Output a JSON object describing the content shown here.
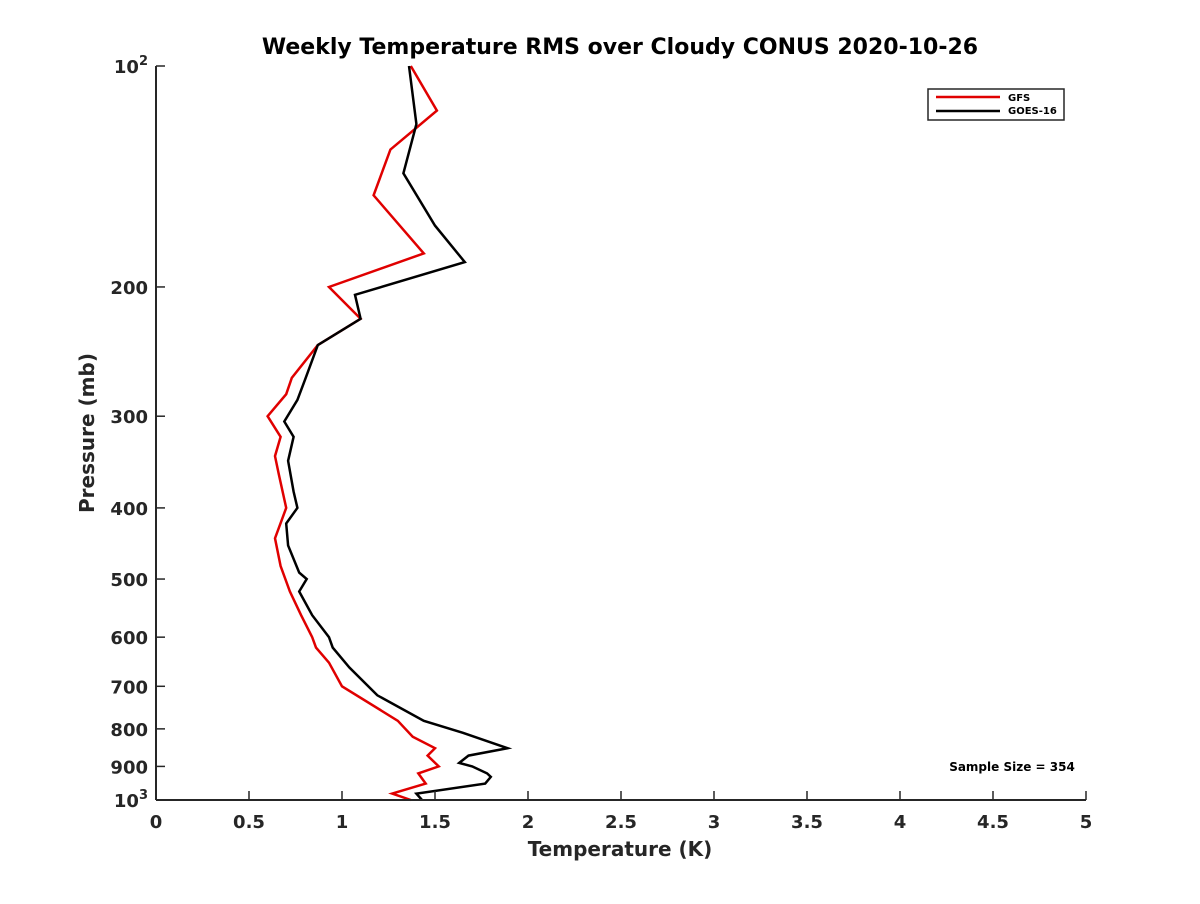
{
  "chart_data": {
    "type": "line",
    "title": "Weekly Temperature RMS over Cloudy CONUS 2020-10-26",
    "xlabel": "Temperature (K)",
    "ylabel": "Pressure (mb)",
    "xlim": [
      0,
      5
    ],
    "ylim": [
      100,
      1000
    ],
    "y_scale": "log",
    "y_reversed": true,
    "x_ticks": [
      0,
      0.5,
      1,
      1.5,
      2,
      2.5,
      3,
      3.5,
      4,
      4.5,
      5
    ],
    "x_tick_labels": [
      "0",
      "0.5",
      "1",
      "1.5",
      "2",
      "2.5",
      "3",
      "3.5",
      "4",
      "4.5",
      "5"
    ],
    "y_ticks": [
      100,
      200,
      300,
      400,
      500,
      600,
      700,
      800,
      900,
      1000
    ],
    "y_tick_labels": [
      {
        "base": "10",
        "exp": "2"
      },
      {
        "base": "200"
      },
      {
        "base": "300"
      },
      {
        "base": "400"
      },
      {
        "base": "500"
      },
      {
        "base": "600"
      },
      {
        "base": "700"
      },
      {
        "base": "800"
      },
      {
        "base": "900"
      },
      {
        "base": "10",
        "exp": "3"
      }
    ],
    "grid": false,
    "legend_position": "top-right",
    "annotation": "Sample Size = 354",
    "series": [
      {
        "name": "GFS",
        "color": "#e00000",
        "points": [
          [
            1.37,
            100
          ],
          [
            1.51,
            115
          ],
          [
            1.26,
            130
          ],
          [
            1.17,
            150
          ],
          [
            1.44,
            180
          ],
          [
            0.93,
            200
          ],
          [
            1.1,
            221
          ],
          [
            0.87,
            240
          ],
          [
            0.73,
            266
          ],
          [
            0.7,
            280
          ],
          [
            0.6,
            300
          ],
          [
            0.67,
            320
          ],
          [
            0.64,
            340
          ],
          [
            0.66,
            360
          ],
          [
            0.7,
            400
          ],
          [
            0.64,
            440
          ],
          [
            0.67,
            480
          ],
          [
            0.72,
            520
          ],
          [
            0.78,
            560
          ],
          [
            0.84,
            600
          ],
          [
            0.86,
            620
          ],
          [
            0.93,
            650
          ],
          [
            1.0,
            700
          ],
          [
            1.3,
            780
          ],
          [
            1.38,
            820
          ],
          [
            1.5,
            850
          ],
          [
            1.46,
            870
          ],
          [
            1.52,
            900
          ],
          [
            1.41,
            920
          ],
          [
            1.45,
            950
          ],
          [
            1.27,
            980
          ],
          [
            1.37,
            1000
          ]
        ]
      },
      {
        "name": "GOES-16",
        "color": "#000000",
        "points": [
          [
            1.36,
            100
          ],
          [
            1.4,
            120
          ],
          [
            1.33,
            140
          ],
          [
            1.5,
            165
          ],
          [
            1.66,
            185
          ],
          [
            1.07,
            205
          ],
          [
            1.1,
            221
          ],
          [
            0.87,
            240
          ],
          [
            0.8,
            268
          ],
          [
            0.76,
            285
          ],
          [
            0.69,
            305
          ],
          [
            0.74,
            320
          ],
          [
            0.71,
            345
          ],
          [
            0.74,
            380
          ],
          [
            0.76,
            400
          ],
          [
            0.7,
            420
          ],
          [
            0.71,
            450
          ],
          [
            0.77,
            490
          ],
          [
            0.81,
            500
          ],
          [
            0.77,
            520
          ],
          [
            0.84,
            560
          ],
          [
            0.93,
            600
          ],
          [
            0.95,
            620
          ],
          [
            1.04,
            660
          ],
          [
            1.19,
            720
          ],
          [
            1.44,
            780
          ],
          [
            1.65,
            810
          ],
          [
            1.89,
            850
          ],
          [
            1.68,
            870
          ],
          [
            1.63,
            890
          ],
          [
            1.7,
            900
          ],
          [
            1.78,
            920
          ],
          [
            1.8,
            930
          ],
          [
            1.77,
            950
          ],
          [
            1.4,
            980
          ],
          [
            1.43,
            1000
          ]
        ]
      }
    ]
  }
}
